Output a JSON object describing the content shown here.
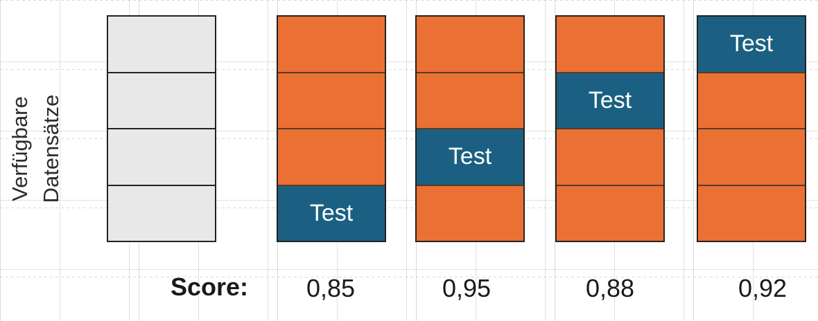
{
  "axis_label": {
    "line1": "Verfügbare",
    "line2": "Datensätze"
  },
  "score_label": "Score:",
  "folds": [
    {
      "cells": [
        "available",
        "available",
        "available",
        "available"
      ],
      "score": ""
    },
    {
      "cells": [
        "train",
        "train",
        "train",
        "test"
      ],
      "score": "0,85"
    },
    {
      "cells": [
        "train",
        "train",
        "test",
        "train"
      ],
      "score": "0,95"
    },
    {
      "cells": [
        "train",
        "test",
        "train",
        "train"
      ],
      "score": "0,88"
    },
    {
      "cells": [
        "test",
        "train",
        "train",
        "train"
      ],
      "score": "0,92"
    }
  ],
  "test_label": "Test",
  "colors": {
    "available": "#e8e8e8",
    "train": "#ea7133",
    "test": "#1b6082"
  }
}
